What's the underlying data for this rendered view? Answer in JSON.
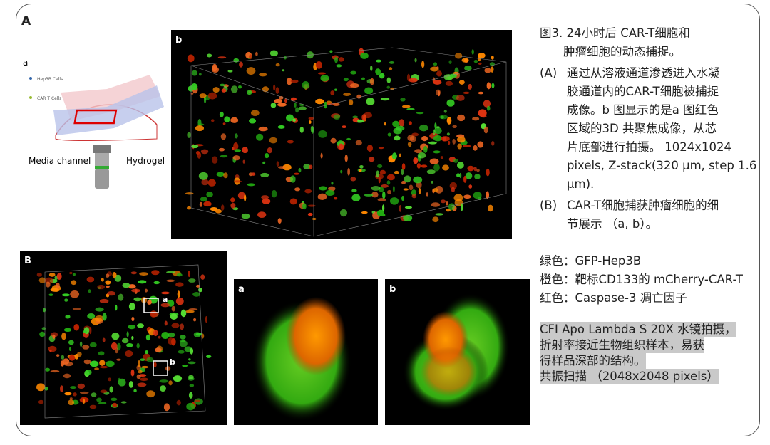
{
  "panel_A": {
    "label": "A",
    "schematic": {
      "label": "a",
      "legend": [
        "Hep3B Cells",
        "CAR T Cells"
      ],
      "media_channel": "Media channel",
      "hydrogel": "Hydrogel"
    },
    "image_label": "b"
  },
  "panel_B": {
    "label": "B",
    "box_labels": [
      "a",
      "b"
    ],
    "zoom_labels": [
      "a",
      "b"
    ]
  },
  "caption": {
    "title_lines": [
      "图3. 24小时后 CAR-T细胞和",
      "肿瘤细胞的动态捕捉。"
    ],
    "items": [
      {
        "marker": "(A)",
        "lines": [
          "通过从溶液通道渗透进入水凝",
          "胶通道内的CAR-T细胞被捕捉",
          "成像。b 图显示的是a 图红色",
          "区域的3D 共聚焦成像，从芯",
          "片底部进行拍摄。 1024x1024",
          "pixels, Z-stack(320 µm, step 1.6",
          "µm)."
        ]
      },
      {
        "marker": "(B)",
        "lines": [
          "CAR-T细胞捕获肿瘤细胞的细",
          "节展示 （a, b）。"
        ]
      }
    ],
    "colors": [
      "绿色：GFP-Hep3B",
      "橙色：靶标CD133的 mCherry-CAR-T",
      "红色：Caspase-3 凋亡因子"
    ],
    "note_lines": [
      "CFI Apo  Lambda S 20X 水镜拍摄，",
      "折射率接近生物组织样本，易获",
      "得样品深部的结构。",
      "共振扫描 （2048x2048 pixels）"
    ]
  }
}
